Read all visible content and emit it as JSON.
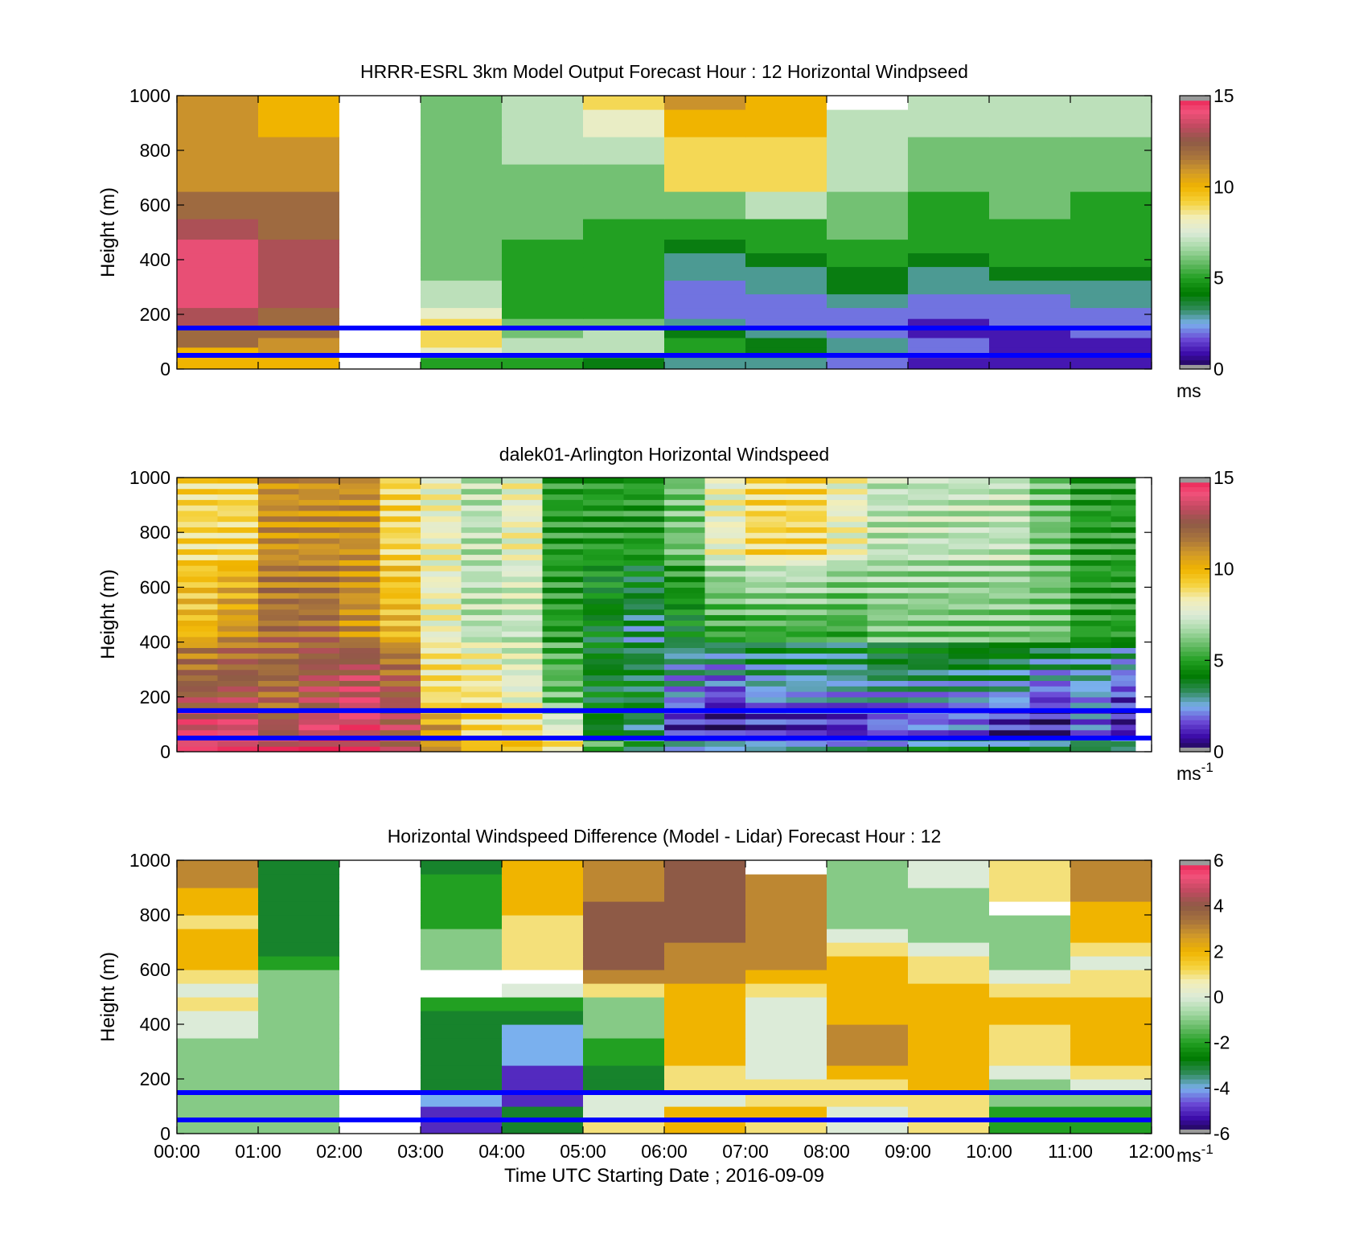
{
  "figure": {
    "xlabel": "Time UTC  Starting Date ; 2016-09-09"
  },
  "colors": {
    "colormap": [
      "#1a0a3c",
      "#3b0aa8",
      "#6b4ad6",
      "#7ab0ee",
      "#2e8b57",
      "#007a00",
      "#22a022",
      "#66bb66",
      "#a6d9a6",
      "#dcebd8",
      "#f2eeb8",
      "#f5d23c",
      "#f0b400",
      "#d29a28",
      "#a8743c",
      "#8e5a46",
      "#c04a60",
      "#f2507a",
      "#e8184a"
    ],
    "missing": "#9a9a9a",
    "reference_line": "#0000ff"
  },
  "chart_data": [
    {
      "type": "heatmap",
      "title": "HRRR-ESRL 3km Model Output   Forecast Hour : 12 Horizontal Windpseed",
      "ylabel": "Height (m)",
      "ylim": [
        0,
        1000
      ],
      "yticks": [
        "0",
        "200",
        "400",
        "600",
        "800",
        "1000"
      ],
      "xlim": [
        0,
        12
      ],
      "xticks": [
        "00:00",
        "01:00",
        "02:00",
        "03:00",
        "04:00",
        "05:00",
        "06:00",
        "07:00",
        "08:00",
        "09:00",
        "10:00",
        "11:00",
        "12:00"
      ],
      "show_xticklabels": false,
      "colorbar": {
        "min": 0,
        "max": 15,
        "ticks": [
          "0",
          "5",
          "10",
          "15"
        ],
        "unit": "ms",
        "unit_sup": ""
      },
      "reference_lines_m": [
        50,
        150
      ],
      "heights_m": [
        25,
        60,
        100,
        130,
        170,
        200,
        250,
        300,
        350,
        400,
        450,
        500,
        600,
        700,
        800,
        900,
        1000
      ],
      "times_h": [
        0,
        1,
        2,
        3,
        4,
        5,
        6,
        7,
        8,
        9,
        10,
        11,
        12
      ],
      "values": [
        [
          10,
          10,
          null,
          5,
          5,
          4,
          3,
          3,
          2,
          1,
          1,
          1
        ],
        [
          10,
          11,
          null,
          8,
          7,
          7,
          5,
          4,
          3,
          2,
          1,
          1
        ],
        [
          12,
          11,
          null,
          9,
          7,
          7,
          5,
          4,
          3,
          2,
          1,
          1
        ],
        [
          12,
          12,
          null,
          9,
          6,
          7,
          4,
          3,
          2,
          1,
          1,
          2
        ],
        [
          13,
          12,
          null,
          9,
          6,
          6,
          3,
          2,
          2,
          1,
          2,
          2
        ],
        [
          13,
          12,
          null,
          8,
          5,
          5,
          2,
          2,
          2,
          2,
          2,
          2
        ],
        [
          14,
          13,
          null,
          7,
          5,
          5,
          2,
          2,
          3,
          2,
          2,
          3
        ],
        [
          14,
          13,
          null,
          7,
          5,
          5,
          2,
          3,
          4,
          3,
          3,
          3
        ],
        [
          14,
          13,
          null,
          6,
          5,
          5,
          3,
          3,
          4,
          3,
          4,
          4
        ],
        [
          14,
          13,
          null,
          6,
          5,
          5,
          3,
          4,
          5,
          4,
          5,
          5
        ],
        [
          14,
          13,
          null,
          6,
          5,
          5,
          4,
          5,
          5,
          5,
          5,
          5
        ],
        [
          13,
          12,
          null,
          6,
          6,
          5,
          5,
          5,
          6,
          5,
          5,
          5
        ],
        [
          12,
          12,
          null,
          6,
          6,
          6,
          6,
          7,
          6,
          5,
          6,
          5
        ],
        [
          11,
          11,
          null,
          6,
          6,
          6,
          9,
          9,
          7,
          6,
          6,
          6
        ],
        [
          11,
          11,
          null,
          6,
          7,
          7,
          9,
          9,
          7,
          6,
          6,
          6
        ],
        [
          11,
          10,
          null,
          6,
          7,
          8,
          10,
          10,
          7,
          7,
          7,
          7
        ],
        [
          11,
          10,
          null,
          6,
          7,
          9,
          11,
          10,
          null,
          7,
          7,
          7
        ]
      ]
    },
    {
      "type": "heatmap",
      "title": "dalek01-Arlington  Horizontal Windspeed",
      "ylabel": "Height (m)",
      "ylim": [
        0,
        1000
      ],
      "yticks": [
        "0",
        "200",
        "400",
        "600",
        "800",
        "1000"
      ],
      "xlim": [
        0,
        12
      ],
      "xticks": [
        "00:00",
        "01:00",
        "02:00",
        "03:00",
        "04:00",
        "05:00",
        "06:00",
        "07:00",
        "08:00",
        "09:00",
        "10:00",
        "11:00",
        "12:00"
      ],
      "show_xticklabels": false,
      "colorbar": {
        "min": 0,
        "max": 15,
        "ticks": [
          "0",
          "5",
          "10",
          "15"
        ],
        "unit": "ms",
        "unit_sup": "-1"
      },
      "reference_lines_m": [
        50,
        150
      ],
      "data_end_h": 11.8,
      "profiles": {
        "times_h": [
          0,
          0.5,
          1,
          1.5,
          2,
          2.5,
          3,
          3.5,
          4,
          4.5,
          5,
          5.5,
          6,
          6.5,
          7,
          7.5,
          8,
          8.5,
          9,
          9.5,
          10,
          10.5,
          11,
          11.5
        ],
        "surface_speed": [
          14,
          14,
          14,
          14,
          14,
          13,
          11,
          10,
          10,
          9,
          6,
          4,
          3,
          3,
          3,
          3,
          3,
          3,
          4,
          4,
          4,
          4,
          4,
          4
        ],
        "low_speed": [
          14,
          14,
          13,
          14,
          14,
          13,
          11,
          9,
          9,
          8,
          4,
          3,
          1,
          1,
          1,
          1,
          1,
          2,
          2,
          2,
          1,
          1,
          2,
          1
        ],
        "mid_speed": [
          13,
          13,
          12,
          13,
          14,
          13,
          9,
          9,
          8,
          6,
          4,
          4,
          2,
          1,
          2,
          2,
          2,
          2,
          2,
          2,
          2,
          1,
          2,
          1
        ],
        "upper_speed": [
          10,
          11,
          12,
          12,
          11,
          10,
          8,
          7,
          7,
          5,
          4,
          3,
          4,
          5,
          5,
          5,
          5,
          6,
          6,
          6,
          6,
          6,
          5,
          5
        ],
        "top_speed": [
          9,
          9,
          11,
          11,
          11,
          9,
          8,
          7,
          8,
          5,
          5,
          5,
          6,
          8,
          9,
          9,
          8,
          7,
          7,
          7,
          7,
          6,
          5,
          5
        ]
      }
    },
    {
      "type": "heatmap",
      "title": "Horizontal Windspeed Difference (Model - Lidar) Forecast Hour : 12",
      "ylabel": "Height (m)",
      "xlabel": "Time UTC  Starting Date ; 2016-09-09",
      "ylim": [
        0,
        1000
      ],
      "yticks": [
        "0",
        "200",
        "400",
        "600",
        "800",
        "1000"
      ],
      "xlim": [
        0,
        12
      ],
      "xticks": [
        "00:00",
        "01:00",
        "02:00",
        "03:00",
        "04:00",
        "05:00",
        "06:00",
        "07:00",
        "08:00",
        "09:00",
        "10:00",
        "11:00",
        "12:00"
      ],
      "show_xticklabels": true,
      "colorbar": {
        "min": -6,
        "max": 6,
        "ticks": [
          "-6",
          "-4",
          "-2",
          "0",
          "2",
          "4",
          "6"
        ],
        "unit": "ms",
        "unit_sup": "-1"
      },
      "reference_lines_m": [
        50,
        150
      ],
      "heights_m": [
        25,
        75,
        125,
        175,
        225,
        275,
        325,
        375,
        425,
        475,
        525,
        575,
        625,
        675,
        725,
        775,
        825,
        875,
        925,
        975
      ],
      "times_h": [
        0,
        1,
        2,
        3,
        4,
        5,
        6,
        7,
        8,
        9,
        10,
        11,
        12
      ],
      "values": [
        [
          -1,
          -1,
          null,
          -5,
          -3,
          1,
          2,
          1,
          0,
          1,
          -2,
          -2
        ],
        [
          -1,
          -1,
          null,
          -5,
          -3,
          0,
          2,
          2,
          0,
          1,
          -2,
          -2
        ],
        [
          -1,
          -1,
          null,
          -4,
          -5,
          0,
          0,
          1,
          1,
          1,
          -1,
          -1
        ],
        [
          -1,
          -1,
          null,
          -3,
          -5,
          -3,
          1,
          1,
          1,
          2,
          -1,
          0
        ],
        [
          -1,
          -1,
          null,
          -3,
          -5,
          -3,
          1,
          0,
          2,
          2,
          0,
          1
        ],
        [
          -1,
          -1,
          null,
          -3,
          -4,
          -2,
          2,
          0,
          3,
          2,
          1,
          2
        ],
        [
          -1,
          -1,
          null,
          -3,
          -4,
          -2,
          2,
          0,
          3,
          2,
          1,
          2
        ],
        [
          0,
          -1,
          null,
          -3,
          -4,
          -1,
          2,
          0,
          3,
          2,
          1,
          2
        ],
        [
          0,
          -1,
          null,
          -3,
          -3,
          -1,
          2,
          0,
          2,
          2,
          2,
          2
        ],
        [
          1,
          -1,
          null,
          -2,
          -2,
          -1,
          2,
          0,
          2,
          2,
          2,
          2
        ],
        [
          0,
          -1,
          null,
          null,
          0,
          1,
          2,
          1,
          2,
          2,
          1,
          1
        ],
        [
          1,
          -1,
          null,
          null,
          null,
          3,
          3,
          2,
          2,
          1,
          0,
          1
        ],
        [
          2,
          -2,
          null,
          -1,
          1,
          4,
          3,
          3,
          2,
          1,
          -1,
          0
        ],
        [
          2,
          -3,
          null,
          -1,
          1,
          4,
          3,
          3,
          1,
          0,
          -1,
          1
        ],
        [
          2,
          -3,
          null,
          -1,
          1,
          4,
          4,
          3,
          0,
          -1,
          -1,
          2
        ],
        [
          1,
          -3,
          null,
          -2,
          1,
          4,
          4,
          3,
          -1,
          -1,
          -1,
          2
        ],
        [
          2,
          -3,
          null,
          -2,
          2,
          4,
          4,
          3,
          -1,
          -1,
          null,
          2
        ],
        [
          2,
          -3,
          null,
          -2,
          2,
          3,
          4,
          3,
          -1,
          -1,
          1,
          3
        ],
        [
          3,
          -3,
          null,
          -2,
          2,
          3,
          4,
          3,
          -1,
          0,
          1,
          3
        ],
        [
          3,
          -3,
          null,
          -3,
          2,
          3,
          4,
          null,
          -1,
          0,
          1,
          3
        ]
      ]
    }
  ]
}
